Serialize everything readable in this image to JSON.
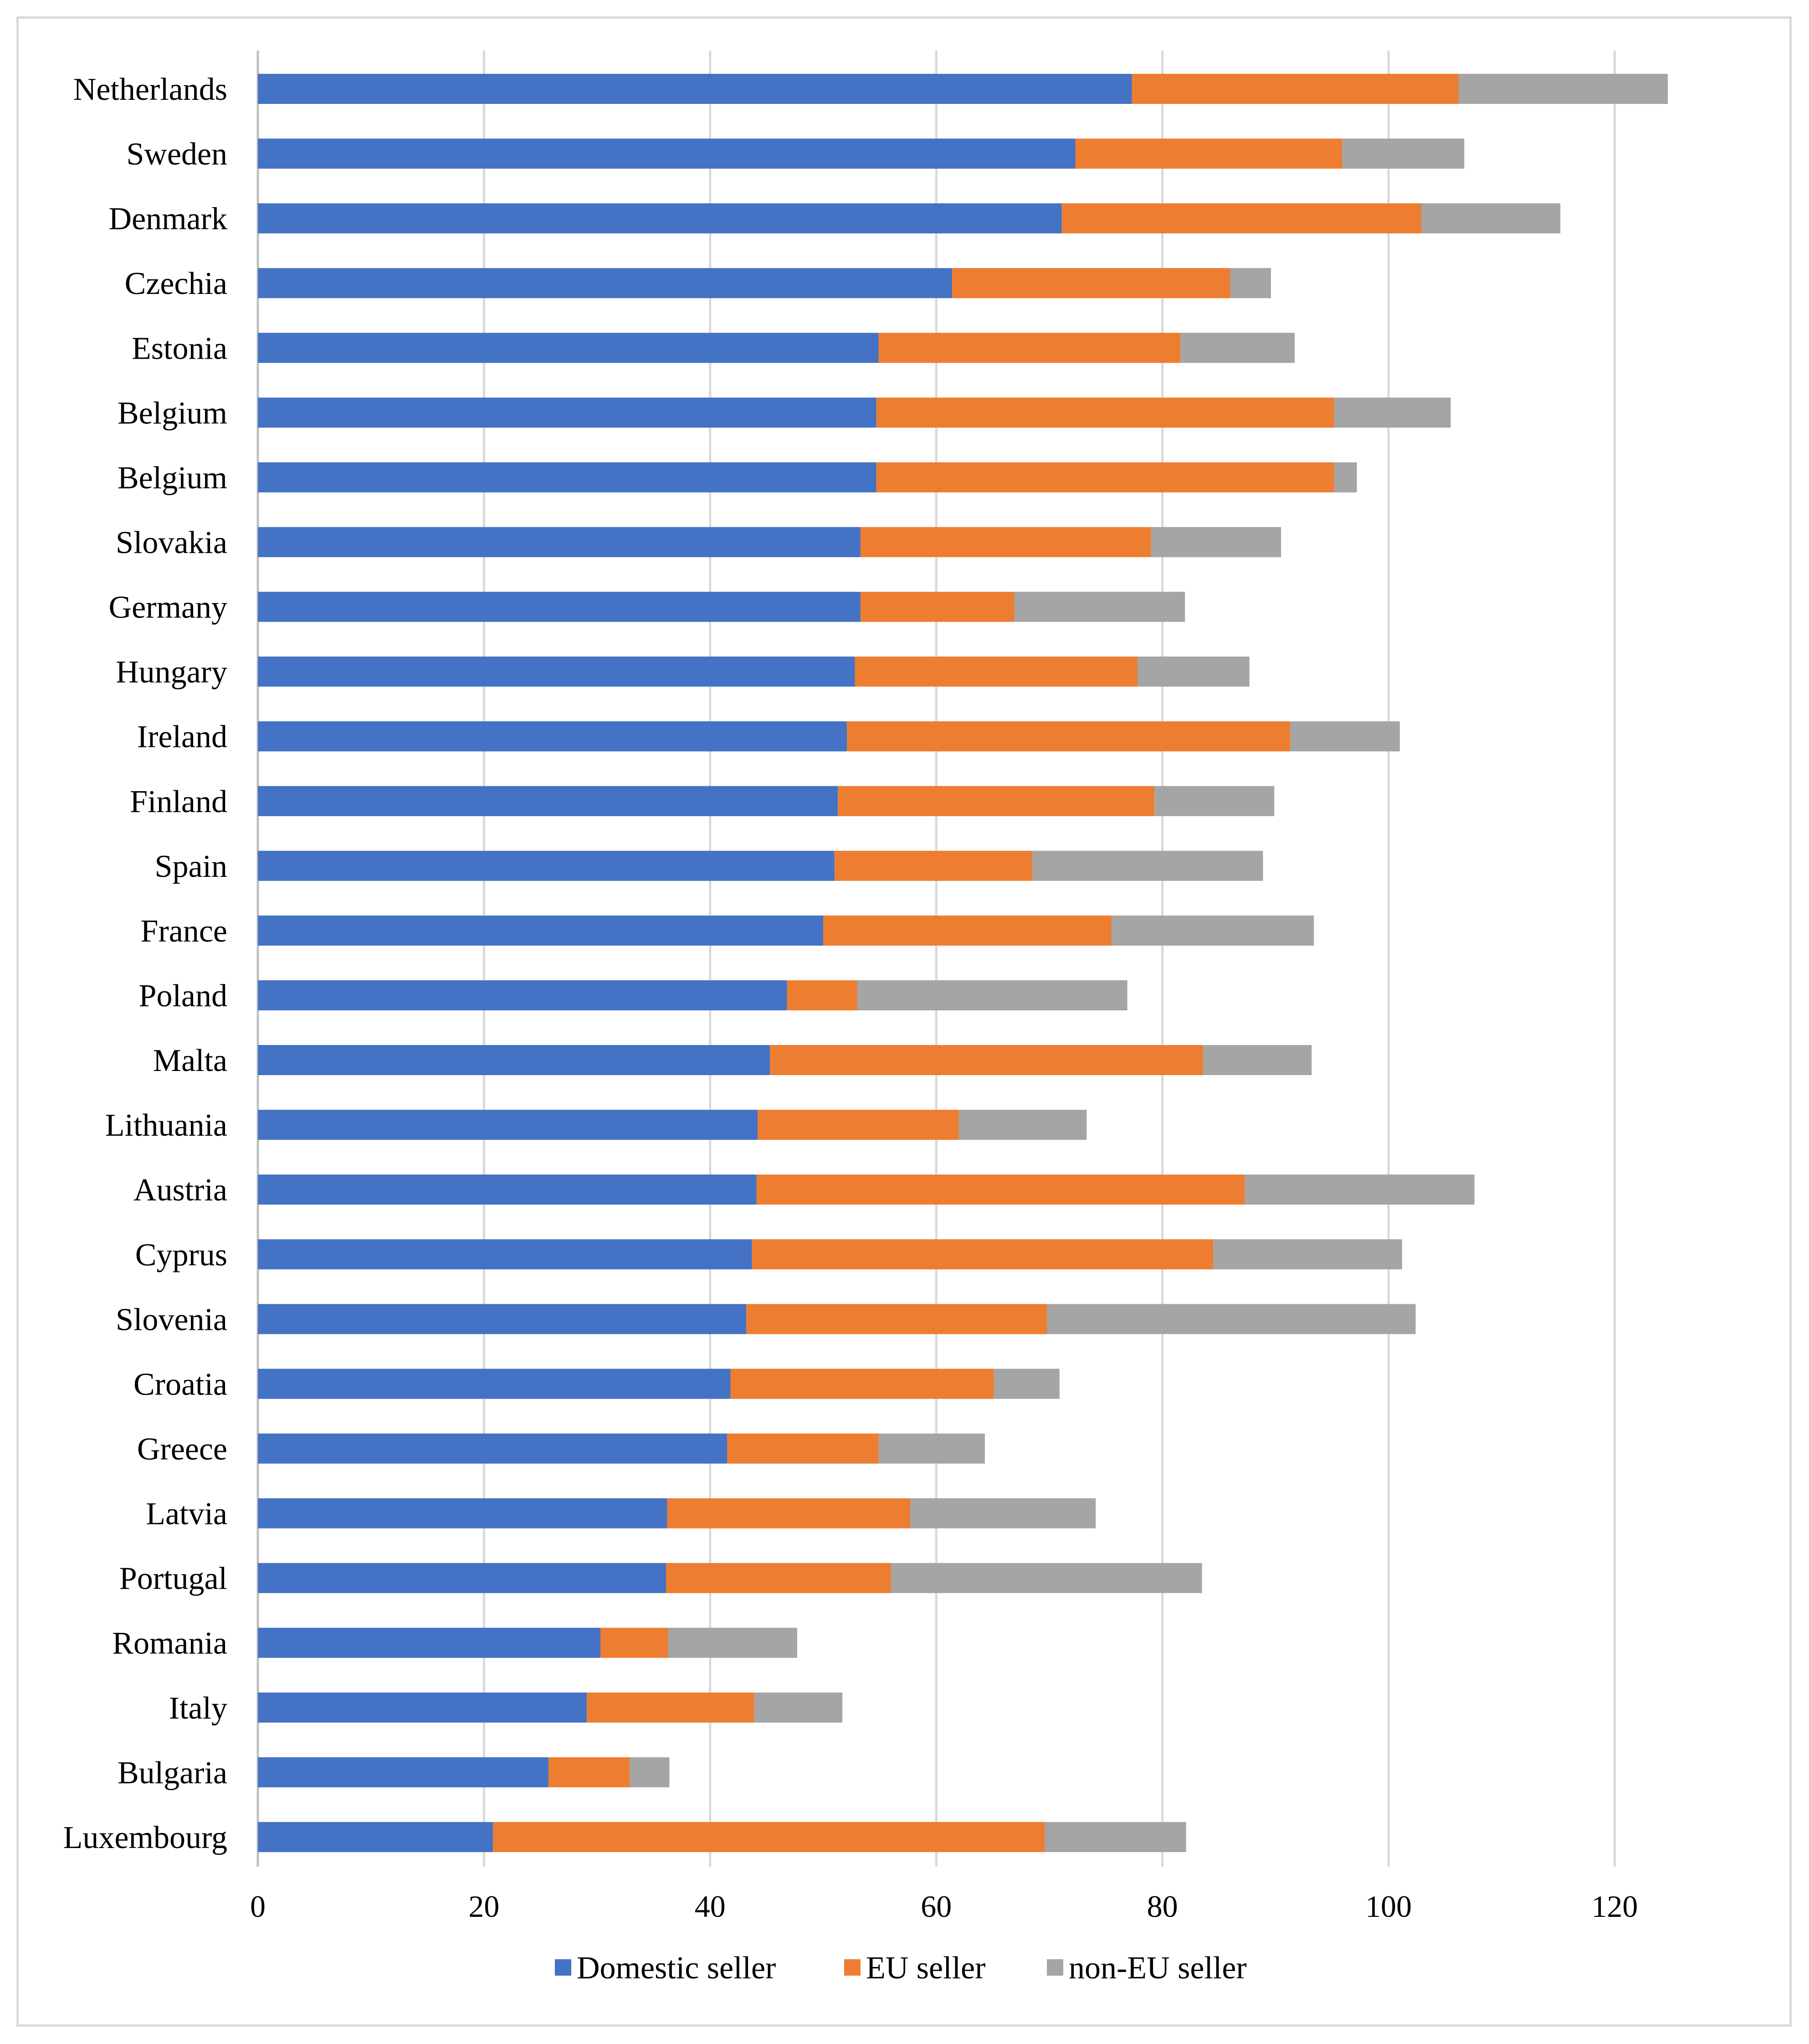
{
  "chart_data": {
    "type": "bar",
    "orientation": "horizontal",
    "stacked": true,
    "title": "",
    "xlabel": "",
    "ylabel": "",
    "xlim": [
      0,
      125
    ],
    "xticks": [
      0,
      20,
      40,
      60,
      80,
      100,
      120
    ],
    "grid": true,
    "legend_position": "bottom",
    "categories": [
      "Netherlands",
      "Sweden",
      "Denmark",
      "Czechia",
      "Estonia",
      "Belgium",
      "Belgium",
      "Slovakia",
      "Germany",
      "Hungary",
      "Ireland",
      "Finland",
      "Spain",
      "France",
      "Poland",
      "Malta",
      "Lithuania",
      "Austria",
      "Cyprus",
      "Slovenia",
      "Croatia",
      "Greece",
      "Latvia",
      "Portugal",
      "Romania",
      "Italy",
      "Bulgaria",
      "Luxembourg"
    ],
    "series": [
      {
        "name": "Domestic seller",
        "color": "#4472c4",
        "values": [
          77.3,
          72.3,
          71.1,
          61.4,
          54.9,
          54.7,
          54.7,
          53.3,
          53.3,
          52.8,
          52.1,
          51.3,
          51.0,
          50.0,
          46.8,
          45.3,
          44.2,
          44.1,
          43.7,
          43.2,
          41.8,
          41.5,
          36.2,
          36.1,
          30.3,
          29.1,
          25.7,
          20.8
        ]
      },
      {
        "name": "EU seller",
        "color": "#ed7d31",
        "values": [
          28.9,
          23.6,
          31.8,
          24.6,
          26.7,
          40.5,
          40.5,
          25.7,
          13.6,
          25.0,
          39.2,
          28.0,
          17.5,
          25.5,
          6.2,
          38.3,
          17.8,
          43.2,
          40.8,
          26.6,
          23.3,
          13.4,
          21.5,
          19.9,
          6.0,
          14.8,
          7.2,
          48.8
        ]
      },
      {
        "name": "non-EU seller",
        "color": "#a5a5a5",
        "values": [
          18.5,
          10.8,
          12.3,
          3.6,
          10.1,
          10.3,
          2.0,
          11.5,
          15.1,
          9.9,
          9.7,
          10.6,
          20.4,
          17.9,
          23.9,
          9.6,
          11.3,
          20.3,
          16.7,
          32.6,
          5.8,
          9.4,
          16.4,
          27.5,
          11.4,
          7.8,
          3.5,
          12.5
        ]
      }
    ]
  }
}
